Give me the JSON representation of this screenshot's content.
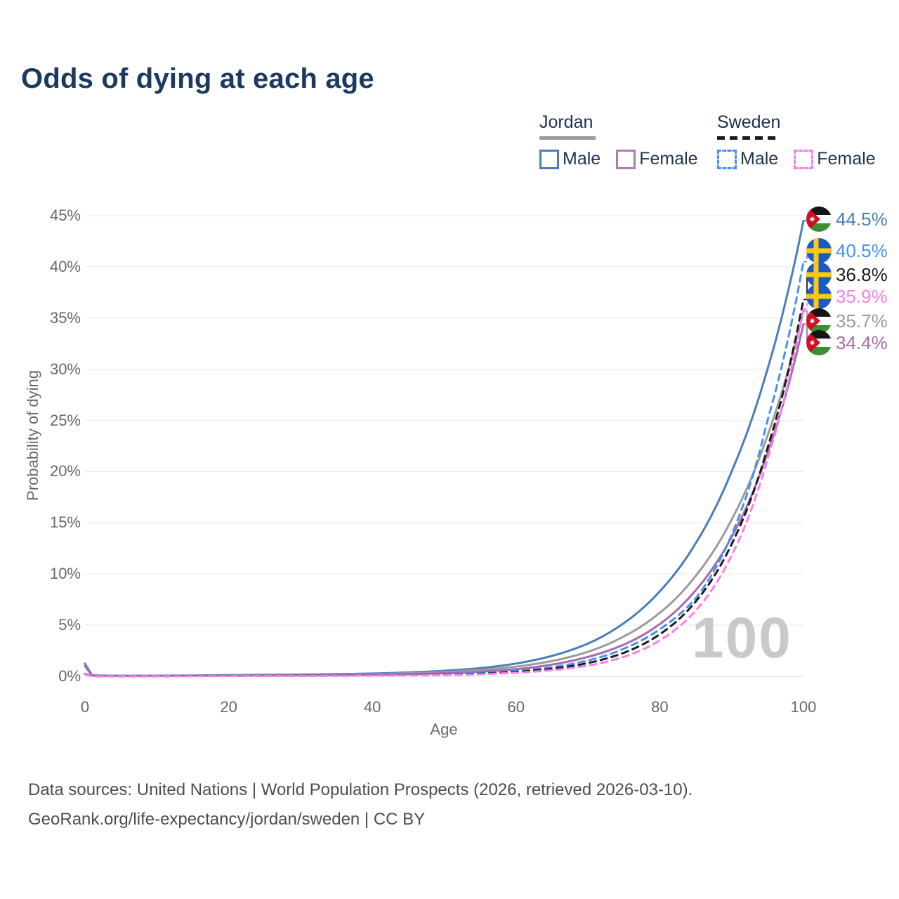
{
  "title": "Odds of dying at each age",
  "legend": {
    "groups": [
      {
        "name": "Jordan",
        "underline_style": "solid",
        "underline_color": "#9b9b9b",
        "underline_width": 80,
        "items": [
          {
            "label": "Male",
            "color": "#4a7dbd",
            "dash": false
          },
          {
            "label": "Female",
            "color": "#b07ab5",
            "dash": false
          }
        ]
      },
      {
        "name": "Sweden",
        "underline_style": "dashed",
        "underline_color": "#1c1c1c",
        "underline_width": 90,
        "items": [
          {
            "label": "Male",
            "color": "#4691f7",
            "dash": true
          },
          {
            "label": "Female",
            "color": "#fa7df2",
            "dash": true
          }
        ]
      }
    ]
  },
  "chart_data": {
    "type": "line",
    "title": "Odds of dying at each age",
    "xlabel": "Age",
    "ylabel": "Probability of dying",
    "xlim": [
      0,
      100
    ],
    "ylim": [
      0,
      45
    ],
    "grid": "horizontal",
    "xtick_values": [
      0,
      20,
      40,
      60,
      80,
      100
    ],
    "xtick_labels": [
      "0",
      "20",
      "40",
      "60",
      "80",
      "100"
    ],
    "ytick_values": [
      0,
      5,
      10,
      15,
      20,
      25,
      30,
      35,
      40,
      45
    ],
    "ytick_labels": [
      "0%",
      "5%",
      "10%",
      "15%",
      "20%",
      "25%",
      "30%",
      "35%",
      "40%",
      "45%"
    ],
    "x_ages": [
      0,
      1,
      5,
      10,
      15,
      20,
      25,
      30,
      35,
      40,
      45,
      50,
      55,
      60,
      65,
      70,
      75,
      80,
      85,
      90,
      95,
      100
    ],
    "series": [
      {
        "name": "Jordan Male",
        "country": "jordan",
        "color": "#4a7dbd",
        "dash": "solid",
        "values": [
          1.25,
          0.1,
          0.06,
          0.07,
          0.09,
          0.12,
          0.15,
          0.18,
          0.22,
          0.28,
          0.38,
          0.55,
          0.8,
          1.25,
          2.0,
          3.2,
          5.2,
          8.3,
          13.0,
          20.0,
          30.0,
          44.5
        ]
      },
      {
        "name": "Jordan Both sexes",
        "country": "jordan",
        "color": "#9b9b9b",
        "dash": "solid",
        "values": [
          1.1,
          0.08,
          0.05,
          0.06,
          0.07,
          0.09,
          0.11,
          0.14,
          0.17,
          0.22,
          0.3,
          0.42,
          0.62,
          0.95,
          1.5,
          2.4,
          3.9,
          6.2,
          9.8,
          15.3,
          23.5,
          35.7
        ]
      },
      {
        "name": "Jordan Female",
        "country": "jordan",
        "color": "#a56ba8",
        "dash": "solid",
        "values": [
          1.0,
          0.07,
          0.04,
          0.05,
          0.06,
          0.07,
          0.08,
          0.1,
          0.12,
          0.16,
          0.21,
          0.3,
          0.45,
          0.7,
          1.15,
          1.9,
          3.1,
          5.1,
          8.4,
          13.6,
          21.8,
          34.4
        ]
      },
      {
        "name": "Sweden Male",
        "country": "sweden",
        "color": "#4691f7",
        "dash": "dashed",
        "values": [
          0.25,
          0.03,
          0.02,
          0.02,
          0.04,
          0.06,
          0.06,
          0.07,
          0.08,
          0.1,
          0.14,
          0.21,
          0.33,
          0.54,
          0.9,
          1.55,
          2.7,
          4.6,
          7.6,
          13.8,
          25.0,
          40.5
        ]
      },
      {
        "name": "Sweden Both sexes",
        "country": "sweden",
        "color": "#1c1c1c",
        "dash": "dashed",
        "values": [
          0.22,
          0.02,
          0.01,
          0.02,
          0.03,
          0.04,
          0.05,
          0.05,
          0.06,
          0.08,
          0.11,
          0.17,
          0.26,
          0.43,
          0.74,
          1.3,
          2.3,
          4.1,
          7.3,
          12.9,
          22.3,
          36.8
        ]
      },
      {
        "name": "Sweden Female",
        "country": "sweden",
        "color": "#fa7df2",
        "dash": "dashed",
        "values": [
          0.2,
          0.02,
          0.01,
          0.02,
          0.02,
          0.03,
          0.04,
          0.04,
          0.05,
          0.07,
          0.09,
          0.13,
          0.21,
          0.35,
          0.6,
          1.05,
          1.9,
          3.5,
          6.4,
          11.8,
          21.2,
          35.9
        ]
      }
    ],
    "end_labels": [
      {
        "text": "44.5%",
        "value": 44.5,
        "series": 0,
        "flag": "jordan",
        "color": "#4a7dbd"
      },
      {
        "text": "40.5%",
        "value": 40.5,
        "series": 3,
        "flag": "sweden",
        "color": "#4691f7"
      },
      {
        "text": "36.8%",
        "value": 36.8,
        "series": 4,
        "flag": "sweden",
        "color": "#1c1c1c"
      },
      {
        "text": "35.9%",
        "value": 35.9,
        "series": 5,
        "flag": "sweden",
        "color": "#fa7df2"
      },
      {
        "text": "35.7%",
        "value": 35.7,
        "series": 1,
        "flag": "jordan",
        "color": "#9b9b9b"
      },
      {
        "text": "34.4%",
        "value": 34.4,
        "series": 2,
        "flag": "jordan",
        "color": "#a56ba8"
      }
    ],
    "legend_position": "top-right"
  },
  "watermark": "100",
  "footer": {
    "line1": "Data sources: United Nations | World Population Prospects (2026, retrieved 2026-03-10).",
    "line2": "GeoRank.org/life-expectancy/jordan/sweden | CC BY"
  },
  "flag_colors": {
    "jordan": {
      "black": "#151515",
      "white": "#ffffff",
      "green": "#3d8e33",
      "red": "#ce1126",
      "star": "#ffffff"
    },
    "sweden": {
      "blue": "#1d5bc4",
      "yellow": "#fdc913"
    }
  }
}
